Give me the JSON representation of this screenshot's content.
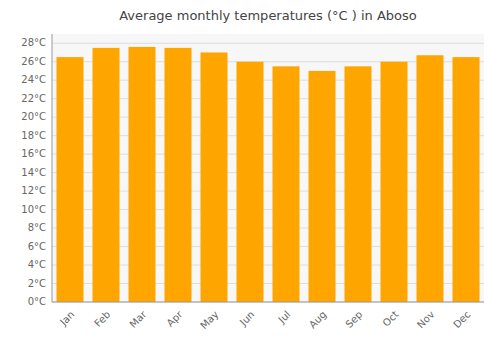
{
  "chart_data": {
    "type": "bar",
    "title": "Average monthly temperatures (°C ) in Aboso",
    "categories": [
      "Jan",
      "Feb",
      "Mar",
      "Apr",
      "May",
      "Jun",
      "Jul",
      "Aug",
      "Sep",
      "Oct",
      "Nov",
      "Dec"
    ],
    "values": [
      26.5,
      27.5,
      27.6,
      27.5,
      27.0,
      26.0,
      25.5,
      25.0,
      25.5,
      26.0,
      26.7,
      26.5
    ],
    "color": "#FFA500",
    "ylim": [
      0,
      29
    ],
    "yticks": [
      {
        "value": 0,
        "label": "0°C"
      },
      {
        "value": 2,
        "label": "2°C"
      },
      {
        "value": 4,
        "label": "4°C"
      },
      {
        "value": 6,
        "label": "6°C"
      },
      {
        "value": 8,
        "label": "8°C"
      },
      {
        "value": 10,
        "label": "10°C"
      },
      {
        "value": 12,
        "label": "12°C"
      },
      {
        "value": 14,
        "label": "14°C"
      },
      {
        "value": 16,
        "label": "16°C"
      },
      {
        "value": 18,
        "label": "18°C"
      },
      {
        "value": 20,
        "label": "20°C"
      },
      {
        "value": 22,
        "label": "22°C"
      },
      {
        "value": 24,
        "label": "24°C"
      },
      {
        "value": 26,
        "label": "26°C"
      },
      {
        "value": 28,
        "label": "28°C"
      }
    ],
    "grid": true
  }
}
